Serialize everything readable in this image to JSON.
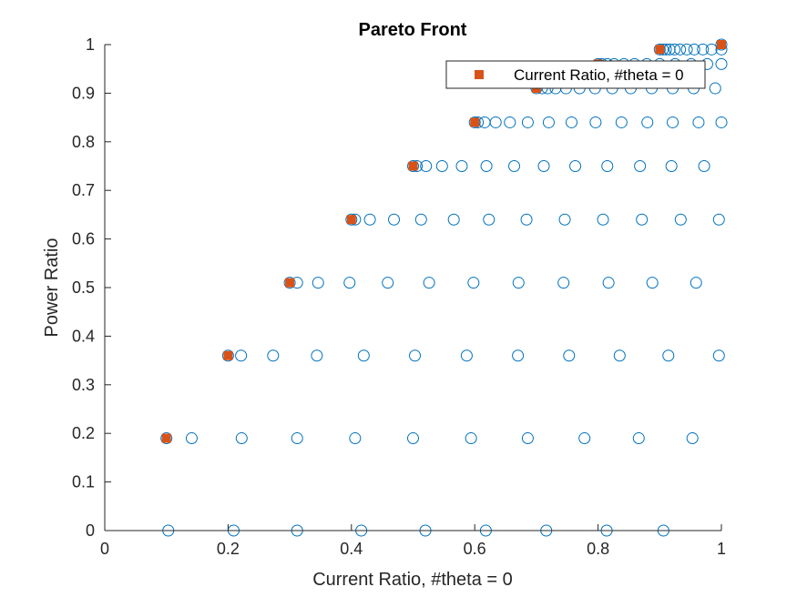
{
  "chart_data": {
    "type": "scatter",
    "title": "Pareto Front",
    "xlabel": "Current Ratio, #theta = 0",
    "ylabel": "Power Ratio",
    "xlim": [
      0,
      1
    ],
    "ylim": [
      0,
      1
    ],
    "xticks": [
      0,
      0.2,
      0.4,
      0.6,
      0.8,
      1
    ],
    "xtick_labels": [
      "0",
      "0.2",
      "0.4",
      "0.6",
      "0.8",
      "1"
    ],
    "yticks": [
      0,
      0.1,
      0.2,
      0.3,
      0.4,
      0.5,
      0.6,
      0.7,
      0.8,
      0.9,
      1
    ],
    "ytick_labels": [
      "0",
      "0.1",
      "0.2",
      "0.3",
      "0.4",
      "0.5",
      "0.6",
      "0.7",
      "0.8",
      "0.9",
      "1"
    ],
    "grid": false,
    "legend_position": "top-right",
    "series": [
      {
        "marker": "open-circle",
        "color": "#0072BD",
        "rows": [
          {
            "y": 0.0,
            "x": [
              0.103,
              0.209,
              0.312,
              0.416,
              0.52,
              0.618,
              0.716,
              0.814,
              0.906
            ]
          },
          {
            "y": 0.19,
            "x": [
              0.1,
              0.141,
              0.222,
              0.312,
              0.406,
              0.5,
              0.594,
              0.686,
              0.778,
              0.866,
              0.953
            ]
          },
          {
            "y": 0.36,
            "x": [
              0.2,
              0.221,
              0.273,
              0.344,
              0.42,
              0.503,
              0.587,
              0.67,
              0.753,
              0.835,
              0.914,
              0.996
            ]
          },
          {
            "y": 0.51,
            "x": [
              0.3,
              0.312,
              0.346,
              0.397,
              0.459,
              0.526,
              0.598,
              0.671,
              0.744,
              0.817,
              0.888,
              0.959
            ]
          },
          {
            "y": 0.64,
            "x": [
              0.4,
              0.406,
              0.43,
              0.469,
              0.513,
              0.566,
              0.623,
              0.684,
              0.746,
              0.808,
              0.871,
              0.934,
              0.996
            ]
          },
          {
            "y": 0.75,
            "x": [
              0.5,
              0.506,
              0.521,
              0.547,
              0.579,
              0.619,
              0.664,
              0.712,
              0.763,
              0.815,
              0.868,
              0.919,
              0.972
            ]
          },
          {
            "y": 0.84,
            "x": [
              0.6,
              0.605,
              0.616,
              0.634,
              0.657,
              0.686,
              0.72,
              0.757,
              0.796,
              0.838,
              0.88,
              0.921,
              0.963,
              1.0
            ]
          },
          {
            "y": 0.91,
            "x": [
              0.7,
              0.709,
              0.718,
              0.731,
              0.748,
              0.77,
              0.795,
              0.823,
              0.853,
              0.887,
              0.921,
              0.955,
              0.99
            ]
          },
          {
            "y": 0.96,
            "x": [
              0.8,
              0.806,
              0.815,
              0.826,
              0.842,
              0.859,
              0.879,
              0.9,
              0.925,
              0.951,
              0.977,
              1.0
            ]
          },
          {
            "y": 0.99,
            "x": [
              0.9,
              0.905,
              0.91,
              0.916,
              0.924,
              0.933,
              0.944,
              0.956,
              0.97,
              0.984,
              1.0
            ]
          },
          {
            "y": 1.0,
            "x": [
              1.0
            ]
          }
        ]
      },
      {
        "name": "Current Ratio, #theta = 0",
        "marker": "filled-square",
        "color": "#D95319",
        "x": [
          0.1,
          0.2,
          0.3,
          0.4,
          0.5,
          0.6,
          0.7,
          0.8,
          0.9,
          1.0
        ],
        "y": [
          0.19,
          0.36,
          0.51,
          0.64,
          0.75,
          0.84,
          0.91,
          0.96,
          0.99,
          1.0
        ]
      }
    ]
  }
}
